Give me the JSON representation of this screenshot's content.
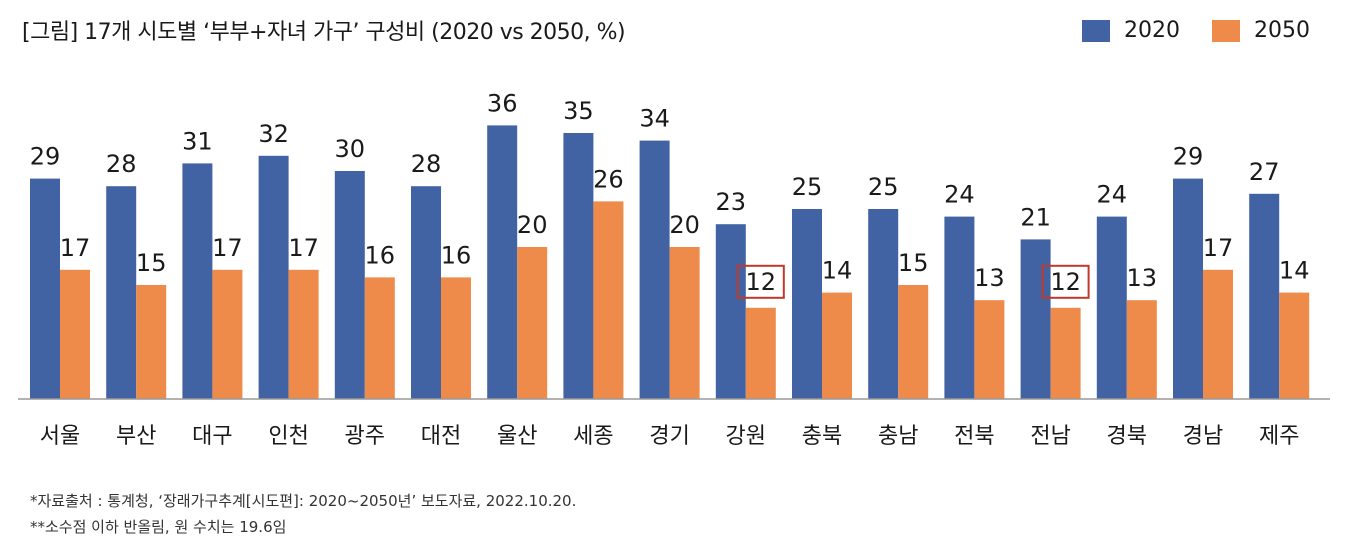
{
  "title": "[그림] 17개 시도별 ‘부부+자녀 가구’ 구성비 (2020 vs 2050, %)",
  "footnotes": [
    "*자료출처 : 통계청, ‘장래가구추계[시도편]: 2020~2050년’ 보도자료, 2022.10.20.",
    "**소수점 이하 반올림, 원 수치는 19.6임"
  ],
  "colors": {
    "series_2020": "#4263A3",
    "series_2050": "#EE8A4A",
    "highlight_box": "#C0392B"
  },
  "chart_data": {
    "type": "bar",
    "categories": [
      "서울",
      "부산",
      "대구",
      "인천",
      "광주",
      "대전",
      "울산",
      "세종",
      "경기",
      "강원",
      "충북",
      "충남",
      "전북",
      "전남",
      "경북",
      "경남",
      "제주"
    ],
    "series": [
      {
        "name": "2020",
        "values": [
          29,
          28,
          31,
          32,
          30,
          28,
          36,
          35,
          34,
          23,
          25,
          25,
          24,
          21,
          24,
          29,
          27
        ]
      },
      {
        "name": "2050",
        "values": [
          17,
          15,
          17,
          17,
          16,
          16,
          20,
          26,
          20,
          12,
          14,
          15,
          13,
          12,
          13,
          17,
          14
        ]
      }
    ],
    "highlighted": [
      {
        "series": "2050",
        "category": "강원"
      },
      {
        "series": "2050",
        "category": "전남"
      }
    ],
    "ylim": [
      0,
      40
    ],
    "legend_position": "top-right",
    "grid": false
  }
}
